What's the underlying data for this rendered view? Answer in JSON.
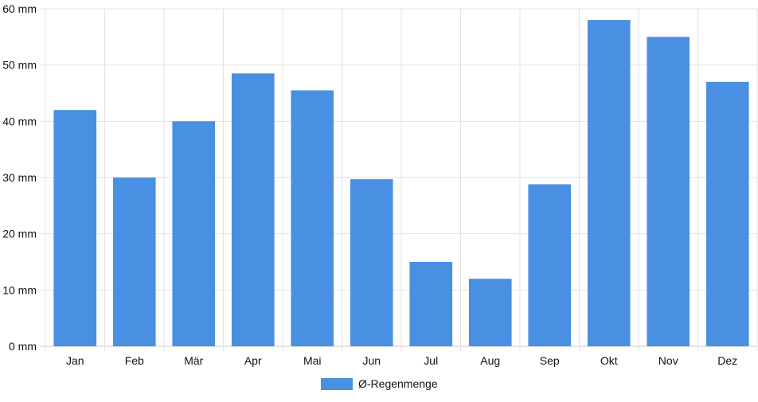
{
  "chart_data": {
    "type": "bar",
    "title": "",
    "xlabel": "",
    "ylabel": "",
    "categories": [
      "Jan",
      "Feb",
      "Mär",
      "Apr",
      "Mai",
      "Jun",
      "Jul",
      "Aug",
      "Sep",
      "Okt",
      "Nov",
      "Dez"
    ],
    "series": [
      {
        "name": "Ø-Regenmenge",
        "values": [
          42,
          30,
          40,
          48.5,
          45.5,
          29.7,
          15,
          12,
          28.8,
          58,
          55,
          47
        ],
        "color": "#4a90e2"
      }
    ],
    "ylim": [
      0,
      60
    ],
    "y_ticks": [
      "0 mm",
      "10 mm",
      "20 mm",
      "30 mm",
      "40 mm",
      "50 mm",
      "60 mm"
    ],
    "grid": true,
    "legend_position": "bottom"
  }
}
